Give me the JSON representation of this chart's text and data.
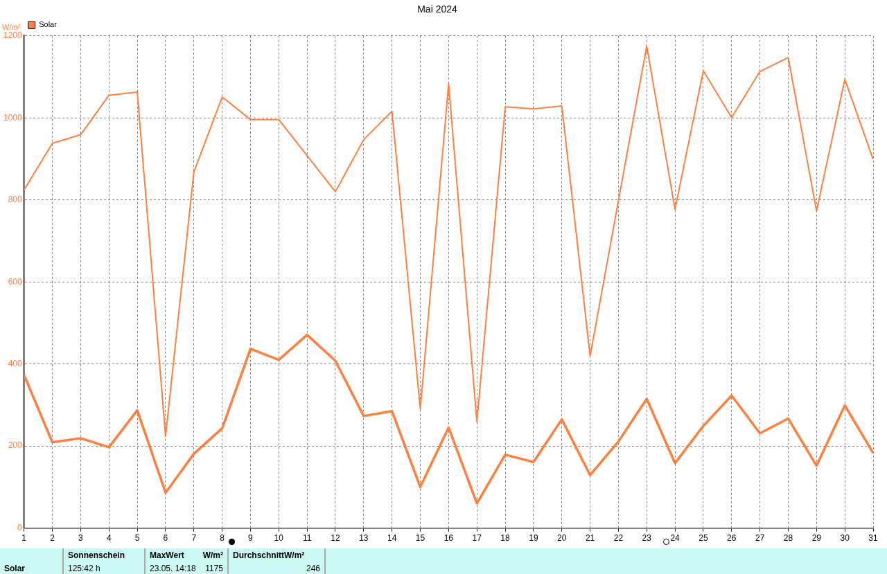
{
  "chart_data": {
    "type": "line",
    "title": "Mai 2024",
    "ylabel": "W/m²",
    "x": [
      1,
      2,
      3,
      4,
      5,
      6,
      7,
      8,
      9,
      10,
      11,
      12,
      13,
      14,
      15,
      16,
      17,
      18,
      19,
      20,
      21,
      22,
      23,
      24,
      25,
      26,
      27,
      28,
      29,
      30,
      31
    ],
    "series": [
      {
        "name": "Solar",
        "color": "#ff7f3f",
        "values": [
          824,
          938,
          959,
          1055,
          1063,
          224,
          868,
          1051,
          996,
          996,
          908,
          820,
          947,
          1016,
          290,
          1083,
          259,
          1027,
          1022,
          1029,
          419,
          798,
          1175,
          777,
          1115,
          1001,
          1113,
          1147,
          773,
          1094,
          899
        ]
      },
      {
        "color": "#ff7f3f",
        "values": [
          373,
          209,
          219,
          197,
          287,
          86,
          181,
          243,
          437,
          410,
          471,
          408,
          273,
          285,
          100,
          245,
          60,
          179,
          161,
          265,
          129,
          211,
          315,
          158,
          249,
          323,
          231,
          267,
          152,
          299,
          183
        ]
      }
    ],
    "xlim": [
      1,
      31
    ],
    "xticks": [
      1,
      2,
      3,
      4,
      5,
      6,
      7,
      8,
      9,
      10,
      11,
      12,
      13,
      14,
      15,
      16,
      17,
      18,
      19,
      20,
      21,
      22,
      23,
      24,
      25,
      26,
      27,
      28,
      29,
      30,
      31
    ],
    "ylim": [
      0,
      1200
    ],
    "yticks": [
      0,
      200,
      400,
      600,
      800,
      1000,
      1200
    ],
    "grid": true,
    "legend": "top left",
    "marker": "none",
    "line_style": "solid",
    "annotations": [
      "Solar",
      "Sonnenschein",
      "125:42 h",
      "MaxWert",
      "W/m²",
      "23.05.  14:18",
      "1175",
      "Durchschnitt",
      "W/m²",
      "246"
    ]
  }
}
